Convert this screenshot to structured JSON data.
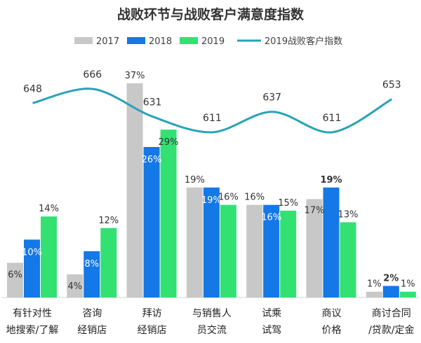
{
  "chart_data": {
    "type": "bar",
    "title": "战败环节与战败客户满意度指数",
    "categories": [
      [
        "有针对性",
        "地搜索/了解"
      ],
      [
        "咨询",
        "经销店"
      ],
      [
        "拜访",
        "经销店"
      ],
      [
        "与销售人",
        "员交流"
      ],
      [
        "试乘",
        "试驾"
      ],
      [
        "商议",
        "价格"
      ],
      [
        "商讨合同",
        "/贷款/定金"
      ]
    ],
    "series": [
      {
        "name": "2017",
        "color": "#c8c8c8",
        "values": [
          6,
          4,
          37,
          19,
          16,
          17,
          1
        ],
        "labels": [
          "6%",
          "4%",
          "37%",
          "19%",
          "16%",
          "17%",
          "1%"
        ]
      },
      {
        "name": "2018",
        "color": "#1478e6",
        "values": [
          10,
          8,
          26,
          19,
          16,
          19,
          2
        ],
        "labels": [
          "10%",
          "8%",
          "26%",
          "19%",
          "16%",
          "19%",
          "2%"
        ]
      },
      {
        "name": "2019",
        "color": "#33e173",
        "values": [
          14,
          12,
          29,
          16,
          15,
          13,
          1
        ],
        "labels": [
          "14%",
          "12%",
          "29%",
          "16%",
          "15%",
          "13%",
          "1%"
        ]
      }
    ],
    "line": {
      "name": "2019战败客户指数",
      "color": "#2aa2b8",
      "values": [
        648,
        666,
        631,
        611,
        637,
        611,
        653
      ],
      "labels": [
        "648",
        "666",
        "631",
        "611",
        "637",
        "611",
        "653"
      ]
    },
    "ylim": [
      0,
      37
    ],
    "line_ylim": [
      611,
      666
    ],
    "legend_position": "top",
    "grid": false
  }
}
